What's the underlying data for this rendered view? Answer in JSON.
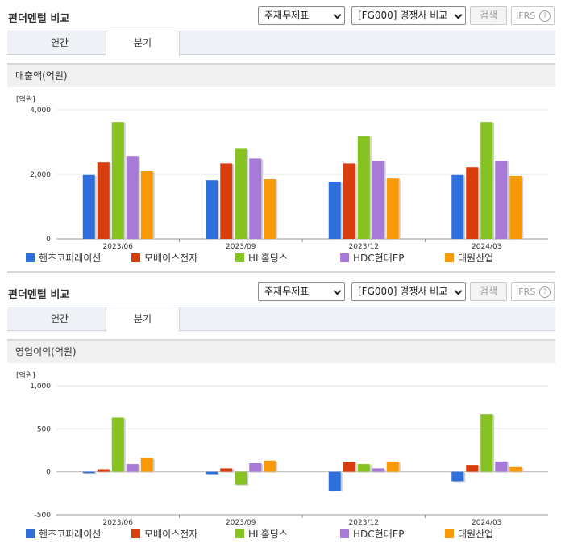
{
  "legend": [
    {
      "name": "핸즈코퍼레이션",
      "color": "#2f6fdc"
    },
    {
      "name": "모베이스전자",
      "color": "#d63e0e"
    },
    {
      "name": "HL홀딩스",
      "color": "#86c322"
    },
    {
      "name": "HDC현대EP",
      "color": "#a77ad8"
    },
    {
      "name": "대원산업",
      "color": "#f89a08"
    }
  ],
  "panels": [
    {
      "title": "펀더멘털 비교",
      "select_type": "주재무제표",
      "select_peer": "[FG000] 경쟁사 비교",
      "search_label": "검색",
      "ifrs_label": "IFRS",
      "tabs": [
        "연간",
        "분기"
      ],
      "active_tab": "분기",
      "chart_title": "매출액(억원)",
      "unit": "[억원]"
    },
    {
      "title": "펀더멘털 비교",
      "select_type": "주재무제표",
      "select_peer": "[FG000] 경쟁사 비교",
      "search_label": "검색",
      "ifrs_label": "IFRS",
      "tabs": [
        "연간",
        "분기"
      ],
      "active_tab": "분기",
      "chart_title": "영업이익(억원)",
      "unit": "[억원]"
    }
  ],
  "chart_data": [
    {
      "type": "bar",
      "title": "매출액(억원)",
      "ylabel": "[억원]",
      "categories": [
        "2023/06",
        "2023/09",
        "2023/12",
        "2024/03"
      ],
      "ylim": [
        0,
        4000
      ],
      "yticks": [
        0,
        2000,
        4000
      ],
      "ytick_labels": [
        "0",
        "2,000",
        "4,000"
      ],
      "grid": true,
      "legend_position": "bottom",
      "series": [
        {
          "name": "핸즈코퍼레이션",
          "values": [
            1980,
            1820,
            1770,
            1980
          ]
        },
        {
          "name": "모베이스전자",
          "values": [
            2370,
            2340,
            2340,
            2220
          ]
        },
        {
          "name": "HL홀딩스",
          "values": [
            3620,
            2790,
            3190,
            3620
          ]
        },
        {
          "name": "HDC현대EP",
          "values": [
            2570,
            2490,
            2420,
            2420
          ]
        },
        {
          "name": "대원산업",
          "values": [
            2100,
            1850,
            1870,
            1950
          ]
        }
      ]
    },
    {
      "type": "bar",
      "title": "영업이익(억원)",
      "ylabel": "[억원]",
      "categories": [
        "2023/06",
        "2023/09",
        "2023/12",
        "2024/03"
      ],
      "ylim": [
        -500,
        1000
      ],
      "yticks": [
        -500,
        0,
        500,
        1000
      ],
      "ytick_labels": [
        "-500",
        "0",
        "500",
        "1,000"
      ],
      "grid": true,
      "legend_position": "bottom",
      "series": [
        {
          "name": "핸즈코퍼레이션",
          "values": [
            -15,
            -25,
            -220,
            -110
          ]
        },
        {
          "name": "모베이스전자",
          "values": [
            30,
            40,
            115,
            80
          ]
        },
        {
          "name": "HL홀딩스",
          "values": [
            630,
            -150,
            90,
            670
          ]
        },
        {
          "name": "HDC현대EP",
          "values": [
            90,
            100,
            40,
            120
          ]
        },
        {
          "name": "대원산업",
          "values": [
            160,
            130,
            120,
            55
          ]
        }
      ]
    }
  ]
}
